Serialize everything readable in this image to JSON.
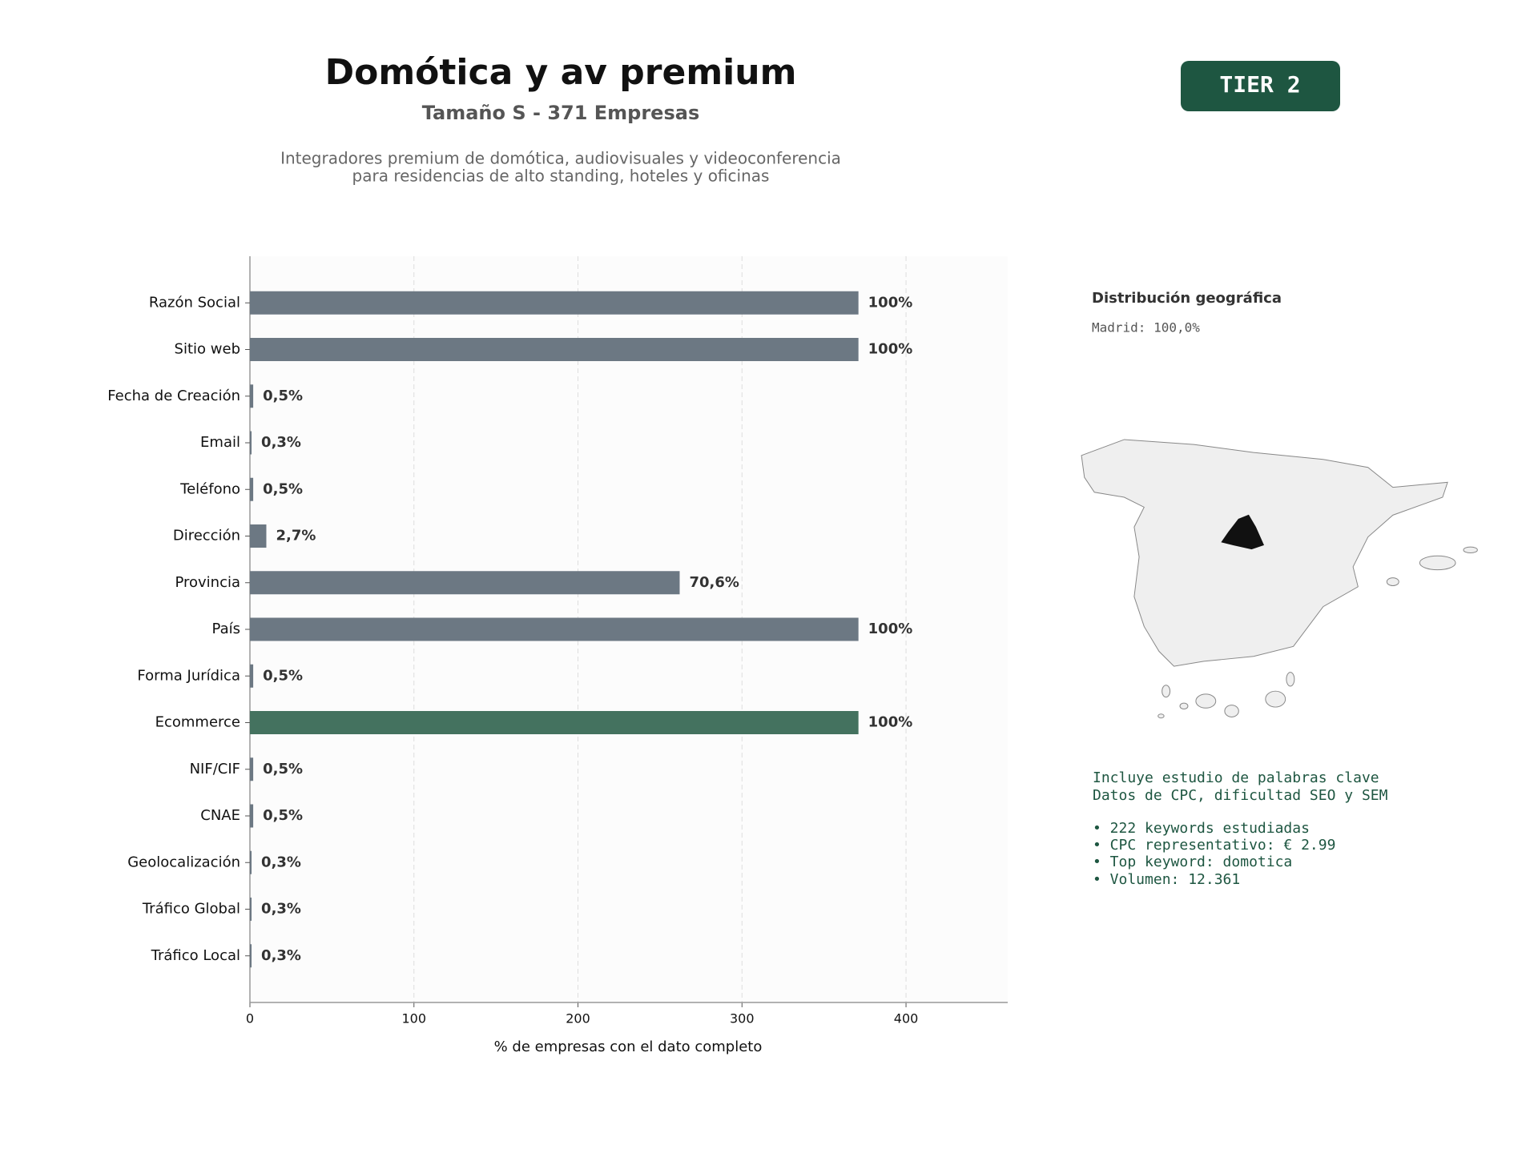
{
  "header": {
    "title": "Domótica y av premium",
    "subtitle": "Tamaño S - 371 Empresas",
    "description": [
      "Integradores premium de domótica, audiovisuales y videoconferencia",
      "para residencias de alto standing, hoteles y oficinas"
    ]
  },
  "badge": "TIER 2",
  "chart_data": {
    "type": "barh",
    "categories": [
      "Razón Social",
      "Sitio web",
      "Fecha de Creación",
      "Email",
      "Teléfono",
      "Dirección",
      "Provincia",
      "País",
      "Forma Jurídica",
      "Ecommerce",
      "NIF/CIF",
      "CNAE",
      "Geolocalización",
      "Tráfico Global",
      "Tráfico Local"
    ],
    "values": [
      371,
      371,
      2,
      1,
      2,
      10,
      262,
      371,
      2,
      371,
      2,
      2,
      1,
      1,
      1
    ],
    "value_labels": [
      "100%",
      "100%",
      "0,5%",
      "0,3%",
      "0,5%",
      "2,7%",
      "70,6%",
      "100%",
      "0,5%",
      "100%",
      "0,5%",
      "0,5%",
      "0,3%",
      "0,3%",
      "0,3%"
    ],
    "colors": [
      "#6c7883",
      "#6c7883",
      "#6c7883",
      "#6c7883",
      "#6c7883",
      "#6c7883",
      "#6c7883",
      "#6c7883",
      "#6c7883",
      "#44725f",
      "#6c7883",
      "#6c7883",
      "#6c7883",
      "#6c7883",
      "#6c7883"
    ],
    "xlim": [
      0,
      462
    ],
    "xticks": [
      0,
      100,
      200,
      300,
      400
    ],
    "xlabel": "% de empresas con el dato completo",
    "grid": true
  },
  "sidebar": {
    "geo_title": "Distribución geográfica",
    "geo_items": [
      "Madrid: 100,0%"
    ],
    "keyword_lines": [
      "Incluye estudio de palabras clave",
      "Datos de CPC, dificultad SEO y SEM"
    ],
    "keyword_bullets": [
      "• 222 keywords estudiadas",
      "• CPC representativo: € 2.99",
      "• Top keyword: domotica",
      "• Volumen: 12.361"
    ]
  }
}
